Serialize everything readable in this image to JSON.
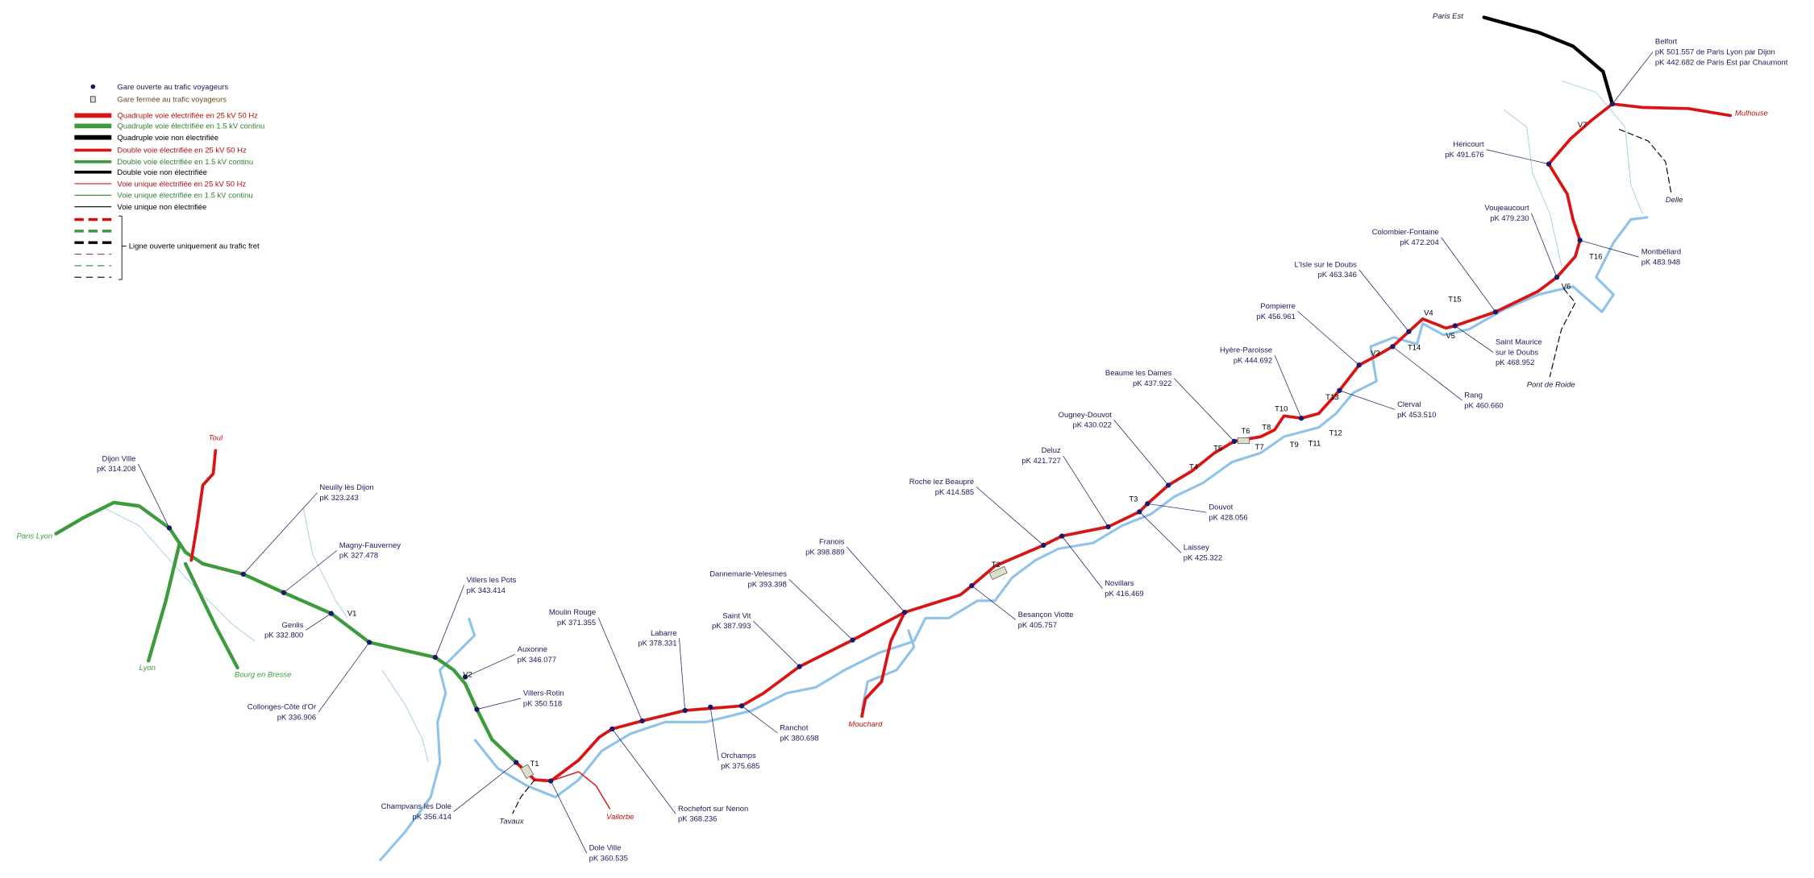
{
  "legend": {
    "items": [
      "Gare ouverte au trafic voyageurs",
      "Gare fermée au trafic voyageurs",
      "Quadruple voie électrifiée en 25 kV 50 Hz",
      "Quadruple voie électrifiée en 1.5 kV continu",
      "Quadruple voie non électrifiée",
      "Double voie électrifiée en 25 kV 50 Hz",
      "Double voie électrifiée en 1.5 kV continu",
      "Double voie non électrifiée",
      "Voie unique électrifiée en 25 kV 50 Hz",
      "Voie unique électrifiée en 1.5 kV continu",
      "Voie unique non électrifiée"
    ],
    "freight_note": "Ligne ouverte uniquement au trafic fret"
  },
  "stations": [
    {
      "lines": [
        "Dijon Ville",
        "pK 314.208"
      ]
    },
    {
      "lines": [
        "Neuilly lès Dijon",
        "pK 323.243"
      ]
    },
    {
      "lines": [
        "Magny-Fauverney",
        "pK 327.478"
      ]
    },
    {
      "lines": [
        "Genlis",
        "pK 332.800"
      ]
    },
    {
      "lines": [
        "Collonges-Côte d'Or",
        "pK 336.906"
      ]
    },
    {
      "lines": [
        "Villers les Pots",
        "pK 343.414"
      ]
    },
    {
      "lines": [
        "Auxonne",
        "pK 346.077"
      ]
    },
    {
      "lines": [
        "Villers-Rotin",
        "pK 350.518"
      ]
    },
    {
      "lines": [
        "Champvans lès Dole",
        "pK 356.414"
      ]
    },
    {
      "lines": [
        "Dole Ville",
        "pK 360.535"
      ]
    },
    {
      "lines": [
        "Moulin Rouge",
        "pK 371.355"
      ]
    },
    {
      "lines": [
        "Rochefort sur Nenon",
        "pK 368.236"
      ]
    },
    {
      "lines": [
        "Labarre",
        "pK 378.331"
      ]
    },
    {
      "lines": [
        "Orchamps",
        "pK 375.685"
      ]
    },
    {
      "lines": [
        "Saint Vit",
        "pK 387.993"
      ]
    },
    {
      "lines": [
        "Ranchot",
        "pK 380.698"
      ]
    },
    {
      "lines": [
        "Dannemarie-Velesmes",
        "pK 393.398"
      ]
    },
    {
      "lines": [
        "Franois",
        "pK 398.889"
      ]
    },
    {
      "lines": [
        "Roche lez Beaupré",
        "pK 414.585"
      ]
    },
    {
      "lines": [
        "Besançon Viotte",
        "pK 405.757"
      ]
    },
    {
      "lines": [
        "Novillars",
        "pK 416.469"
      ]
    },
    {
      "lines": [
        "Deluz",
        "pK 421.727"
      ]
    },
    {
      "lines": [
        "Laissey",
        "pK 425.322"
      ]
    },
    {
      "lines": [
        "Douvot",
        "pK 428.056"
      ]
    },
    {
      "lines": [
        "Ougney-Douvot",
        "pK 430.022"
      ]
    },
    {
      "lines": [
        "Beaume les Dames",
        "pK 437.922"
      ]
    },
    {
      "lines": [
        "Hyère-Paroisse",
        "pK 444.692"
      ]
    },
    {
      "lines": [
        "Clerval",
        "pK 453.510"
      ]
    },
    {
      "lines": [
        "Pompierre",
        "pK 456.961"
      ]
    },
    {
      "lines": [
        "Rang",
        "pK 460.660"
      ]
    },
    {
      "lines": [
        "L'Isle sur le Doubs",
        "pK 463.346"
      ]
    },
    {
      "lines": [
        "Saint Maurice",
        "sur le Doubs",
        "pK 468.952"
      ]
    },
    {
      "lines": [
        "Colombier-Fontaine",
        "pK 472.204"
      ]
    },
    {
      "lines": [
        "Voujeaucourt",
        "pK 479.230"
      ]
    },
    {
      "lines": [
        "Montbéliard",
        "pK 483.948"
      ]
    },
    {
      "lines": [
        "Héricourt",
        "pK 491.676"
      ]
    },
    {
      "lines": [
        "Belfort",
        "pK 501.557 de Paris Lyon par Dijon",
        "pK 442.682 de Paris Est par Chaumont"
      ]
    }
  ],
  "destinations": [
    "Paris Est",
    "Mulhouse",
    "Delle",
    "Pont de Roide",
    "Toul",
    "Paris Lyon",
    "Lyon",
    "Bourg en Bresse",
    "Tavaux",
    "Vallorbe",
    "Mouchard"
  ],
  "tunnels": [
    "T1",
    "T2",
    "T3",
    "T4",
    "T5",
    "T6",
    "T7",
    "T8",
    "T9",
    "T10",
    "T11",
    "T12",
    "T13",
    "T14",
    "T15",
    "T16"
  ],
  "viaducts": [
    "V1",
    "V2",
    "V3",
    "V4",
    "V5",
    "V6",
    "V7"
  ]
}
